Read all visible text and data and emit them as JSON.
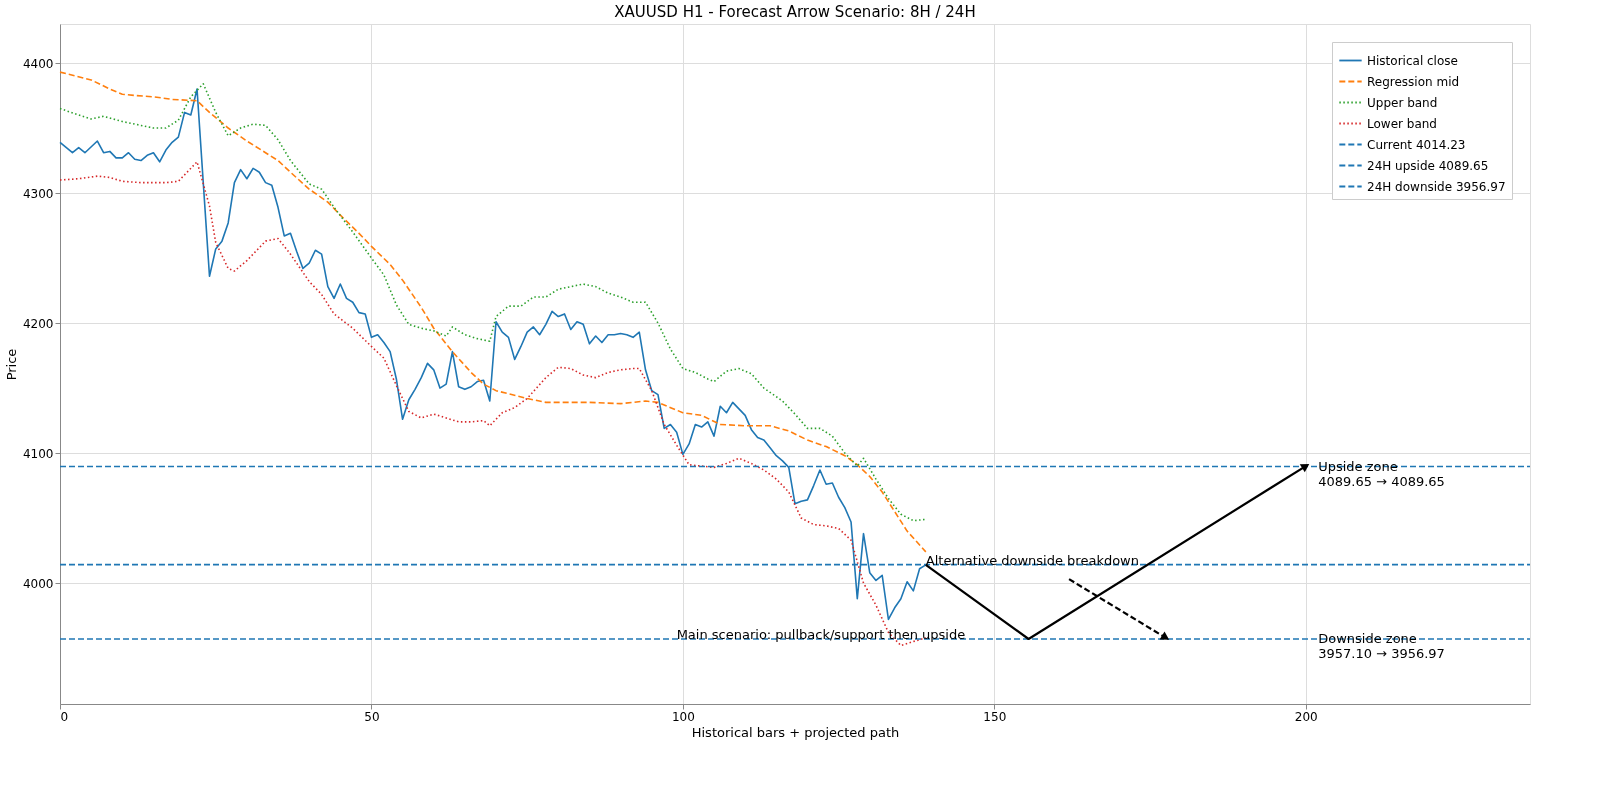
{
  "chart_data": {
    "type": "line",
    "title": "XAUUSD H1 - Forecast Arrow Scenario: 8H / 24H",
    "xlabel": "Historical bars + projected path",
    "ylabel": "Price",
    "xlim": [
      0,
      236
    ],
    "xticks": [
      0,
      50,
      100,
      150,
      200
    ],
    "ylim": [
      3907,
      4430
    ],
    "yticks": [
      4000,
      4100,
      4200,
      4300,
      4400
    ],
    "grid": true,
    "legend": "top right",
    "series": [
      {
        "name": "Historical close",
        "color": "#1f77b4",
        "line_style": "solid",
        "x": [
          0,
          2,
          3,
          4,
          6,
          7,
          8,
          9,
          10,
          11,
          12,
          13,
          14,
          15,
          16,
          17,
          18,
          19,
          20,
          21,
          22,
          24,
          25,
          26,
          27,
          28,
          29,
          30,
          31,
          32,
          33,
          34,
          35,
          36,
          37,
          38,
          39,
          40,
          41,
          42,
          43,
          44,
          45,
          46,
          47,
          48,
          49,
          50,
          51,
          52,
          53,
          54,
          55,
          56,
          57,
          58,
          59,
          60,
          61,
          62,
          63,
          64,
          65,
          66,
          67,
          68,
          69,
          70,
          71,
          72,
          73,
          74,
          75,
          76,
          77,
          78,
          79,
          80,
          81,
          82,
          83,
          84,
          85,
          86,
          87,
          88,
          89,
          90,
          91,
          92,
          93,
          94,
          95,
          96,
          97,
          98,
          99,
          100,
          101,
          102,
          103,
          104,
          105,
          106,
          107,
          108,
          109,
          110,
          111,
          112,
          113,
          114,
          115,
          116,
          117,
          118,
          119,
          120,
          121,
          122,
          123,
          124,
          125,
          126,
          127,
          128,
          129,
          130,
          131,
          132,
          133,
          134,
          135,
          136,
          137,
          138,
          139
        ],
        "values": [
          4339,
          4331,
          4335,
          4331,
          4340,
          4331,
          4332,
          4327,
          4327,
          4331,
          4326,
          4325,
          4329,
          4331,
          4324,
          4333,
          4339,
          4343,
          4362,
          4360,
          4380,
          4236,
          4257,
          4263,
          4277,
          4308,
          4318,
          4311,
          4319,
          4316,
          4308,
          4306,
          4289,
          4267,
          4269,
          4255,
          4242,
          4246,
          4256,
          4253,
          4228,
          4219,
          4230,
          4219,
          4216,
          4208,
          4207,
          4189,
          4191,
          4185,
          4178,
          4157,
          4126,
          4141,
          4149,
          4158,
          4169,
          4164,
          4150,
          4153,
          4178,
          4151,
          4149,
          4151,
          4155,
          4156,
          4140,
          4201,
          4193,
          4189,
          4172,
          4182,
          4193,
          4197,
          4191,
          4199,
          4209,
          4205,
          4207,
          4195,
          4201,
          4199,
          4184,
          4190,
          4185,
          4191,
          4191,
          4192,
          4191,
          4189,
          4193,
          4164,
          4148,
          4145,
          4119,
          4122,
          4116,
          4099,
          4107,
          4122,
          4120,
          4124,
          4113,
          4136,
          4131,
          4139,
          4134,
          4129,
          4118,
          4112,
          4110,
          4104,
          4098,
          4094,
          4089,
          4061,
          4063,
          4064,
          4075,
          4087,
          4076,
          4077,
          4066,
          4058,
          4047,
          3988,
          4038,
          4008,
          4002,
          4006,
          3972,
          3981,
          3988,
          4001,
          3994,
          4011,
          4014
        ]
      },
      {
        "name": "Regression mid",
        "color": "#ff7f0e",
        "line_style": "dashed",
        "x": [
          0,
          5,
          8,
          10,
          12,
          15,
          18,
          22,
          24,
          27,
          30,
          33,
          35,
          37,
          40,
          43,
          45,
          48,
          50,
          53,
          55,
          58,
          60,
          63,
          66,
          68,
          70,
          75,
          78,
          85,
          90,
          94,
          96,
          100,
          103,
          106,
          110,
          114,
          117,
          120,
          123,
          126,
          128,
          130,
          132,
          134,
          136,
          139
        ],
        "values": [
          4393,
          4387,
          4380,
          4376,
          4375,
          4374,
          4372,
          4371,
          4362,
          4350,
          4340,
          4331,
          4325,
          4316,
          4303,
          4293,
          4283,
          4269,
          4259,
          4245,
          4233,
          4212,
          4196,
          4178,
          4162,
          4153,
          4148,
          4142,
          4139,
          4139,
          4138,
          4140,
          4139,
          4131,
          4129,
          4122,
          4121,
          4121,
          4117,
          4110,
          4105,
          4098,
          4091,
          4082,
          4070,
          4055,
          4040,
          4024
        ]
      },
      {
        "name": "Upper band",
        "color": "#2ca02c",
        "line_style": "dotted",
        "x": [
          0,
          3,
          5,
          7,
          10,
          13,
          15,
          17,
          19,
          21,
          23,
          25,
          27,
          29,
          31,
          33,
          35,
          37,
          40,
          42,
          44,
          47,
          50,
          52,
          54,
          56,
          58,
          60,
          62,
          63,
          65,
          67,
          69,
          70,
          72,
          74,
          76,
          78,
          80,
          82,
          84,
          86,
          88,
          90,
          92,
          94,
          96,
          98,
          100,
          102,
          104,
          105,
          107,
          109,
          111,
          113,
          116,
          118,
          120,
          122,
          124,
          126,
          128,
          129,
          131,
          133,
          135,
          137,
          139
        ],
        "values": [
          4365,
          4360,
          4357,
          4359,
          4355,
          4352,
          4350,
          4350,
          4356,
          4374,
          4384,
          4362,
          4344,
          4350,
          4353,
          4352,
          4341,
          4325,
          4307,
          4303,
          4289,
          4270,
          4250,
          4237,
          4214,
          4199,
          4196,
          4194,
          4190,
          4197,
          4191,
          4188,
          4186,
          4205,
          4213,
          4213,
          4220,
          4220,
          4226,
          4228,
          4230,
          4228,
          4223,
          4220,
          4216,
          4216,
          4200,
          4180,
          4165,
          4162,
          4157,
          4155,
          4163,
          4165,
          4161,
          4150,
          4140,
          4130,
          4119,
          4119,
          4113,
          4100,
          4090,
          4096,
          4080,
          4065,
          4053,
          4048,
          4049
        ]
      },
      {
        "name": "Lower band",
        "color": "#d62728",
        "line_style": "dotted",
        "x": [
          0,
          3,
          6,
          8,
          10,
          13,
          15,
          17,
          19,
          22,
          24,
          25,
          27,
          28,
          30,
          33,
          35,
          37,
          40,
          42,
          44,
          47,
          50,
          52,
          54,
          56,
          58,
          60,
          62,
          64,
          66,
          68,
          69,
          71,
          73,
          75,
          78,
          80,
          82,
          84,
          86,
          88,
          90,
          92,
          93,
          95,
          97,
          99,
          101,
          103,
          105,
          107,
          109,
          111,
          113,
          115,
          117,
          119,
          121,
          123,
          125,
          127,
          129,
          131,
          133,
          135,
          137,
          139
        ],
        "values": [
          4310,
          4311,
          4313,
          4312,
          4309,
          4308,
          4308,
          4308,
          4309,
          4324,
          4290,
          4262,
          4242,
          4240,
          4248,
          4263,
          4265,
          4253,
          4232,
          4222,
          4207,
          4196,
          4182,
          4173,
          4152,
          4132,
          4127,
          4130,
          4127,
          4124,
          4124,
          4125,
          4121,
          4131,
          4135,
          4142,
          4158,
          4166,
          4165,
          4160,
          4158,
          4162,
          4164,
          4165,
          4165,
          4148,
          4122,
          4106,
          4091,
          4090,
          4089,
          4092,
          4096,
          4092,
          4087,
          4080,
          4070,
          4050,
          4045,
          4044,
          4042,
          4033,
          4000,
          3983,
          3962,
          3952,
          3955,
          3958
        ]
      },
      {
        "color": "#000000",
        "line_style": "solid",
        "x": [
          139,
          155.5,
          200
        ],
        "values": [
          4014,
          3957,
          4090
        ]
      },
      {
        "color": "#000000",
        "line_style": "dashed",
        "x": [
          162,
          177.5
        ],
        "values": [
          4003,
          3958
        ]
      }
    ],
    "ref_lines": [
      {
        "axis": "y",
        "value": 4014.23,
        "label": "Current 4014.23",
        "color": "#1f77b4",
        "line_style": "dashed"
      },
      {
        "axis": "y",
        "value": 4089.65,
        "label": "24H upside 4089.65",
        "color": "#1f77b4",
        "line_style": "dashed"
      },
      {
        "axis": "y",
        "value": 3956.97,
        "label": "24H downside 3956.97",
        "color": "#1f77b4",
        "line_style": "dashed"
      }
    ],
    "annotations": [
      {
        "text": "Alternative downside breakdown",
        "x": 139,
        "y": 4014.23
      },
      {
        "text": "Main scenario: pullback/support then upside",
        "x": 99,
        "y": 3957
      },
      {
        "text": "Upside zone\n4089.65 → 4089.65",
        "x": 202,
        "y": 4089.65
      },
      {
        "text": "Downside zone\n3957.10 → 3956.97",
        "x": 202,
        "y": 3956.97
      }
    ]
  }
}
